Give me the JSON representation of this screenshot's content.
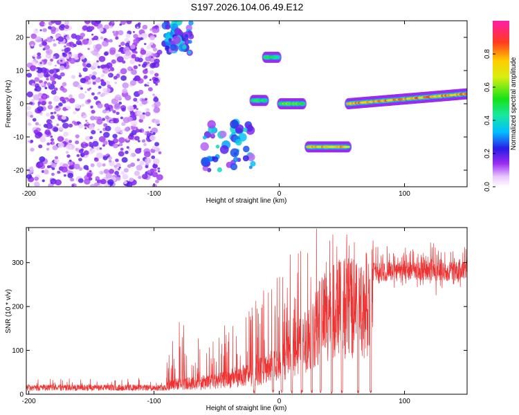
{
  "title": "S197.2026.104.06.49.E12",
  "chart_data": [
    {
      "type": "heatmap",
      "xlabel": "Height of straight line (km)",
      "ylabel": "Frequency (Hz)",
      "xlim": [
        -202,
        150
      ],
      "ylim": [
        -25,
        25
      ],
      "xticks": [
        -200,
        -100,
        0,
        100
      ],
      "xtick_labels": [
        "-200",
        "-100",
        "0",
        "100"
      ],
      "yticks": [
        -20,
        -10,
        0,
        10,
        20
      ],
      "ytick_labels": [
        "-20",
        "-10",
        "0",
        "10",
        "20"
      ],
      "colorbar": {
        "label": "Normalized spectral amplitude",
        "range": [
          0,
          1
        ],
        "ticks": [
          0.0,
          0.2,
          0.4,
          0.6,
          0.8
        ],
        "tick_labels": [
          "0.0",
          "0.2",
          "0.4",
          "0.6",
          "0.8"
        ]
      },
      "features": [
        {
          "x": [
            -200,
            -95
          ],
          "y": [
            -25,
            25
          ],
          "intensity": 0.15,
          "kind": "scatter-noise"
        },
        {
          "x": [
            -92,
            -70
          ],
          "y": [
            15,
            25
          ],
          "intensity": 0.3,
          "kind": "cluster"
        },
        {
          "x": [
            -60,
            -20
          ],
          "y": [
            -20,
            -5
          ],
          "intensity": 0.3,
          "kind": "cluster"
        },
        {
          "x": [
            -21,
            -11
          ],
          "y": [
            1,
            1
          ],
          "intensity": 0.55,
          "kind": "segment"
        },
        {
          "x": [
            -11,
            -1
          ],
          "y": [
            14,
            14
          ],
          "intensity": 0.55,
          "kind": "segment"
        },
        {
          "x": [
            1,
            19
          ],
          "y": [
            0,
            0
          ],
          "intensity": 0.6,
          "kind": "segment"
        },
        {
          "x": [
            23,
            55
          ],
          "y": [
            -13,
            -13
          ],
          "intensity": 0.8,
          "kind": "segment"
        },
        {
          "x": [
            55,
            150
          ],
          "y": [
            0,
            3
          ],
          "intensity": 0.85,
          "kind": "segment"
        }
      ]
    },
    {
      "type": "line",
      "xlabel": "Height of straight line (km)",
      "ylabel": "SNR (10 * v/v)",
      "xlim": [
        -202,
        150
      ],
      "ylim": [
        0,
        380
      ],
      "xticks": [
        -200,
        -100,
        0,
        100
      ],
      "xtick_labels": [
        "-200",
        "-100",
        "0",
        "100"
      ],
      "yticks": [
        0,
        100,
        200,
        300
      ],
      "ytick_labels": [
        "0",
        "100",
        "200",
        "300"
      ],
      "series": [
        {
          "name": "SNR",
          "color": "#ee3333",
          "x": [
            -200,
            -150,
            -100,
            -90,
            -85,
            -60,
            -40,
            -25,
            -20,
            -10,
            0,
            10,
            20,
            30,
            35,
            40,
            50,
            55,
            60,
            65,
            70,
            75,
            100,
            150
          ],
          "baseline": [
            12,
            12,
            12,
            25,
            30,
            35,
            45,
            60,
            60,
            80,
            90,
            120,
            160,
            200,
            240,
            240,
            260,
            260,
            260,
            270,
            270,
            280,
            280,
            280
          ],
          "peak": [
            30,
            35,
            40,
            90,
            175,
            150,
            160,
            195,
            240,
            290,
            280,
            300,
            330,
            360,
            370,
            380,
            360,
            380,
            350,
            330,
            330,
            330,
            330,
            330
          ]
        }
      ],
      "dropouts_x": [
        -20,
        -5,
        2,
        10,
        18,
        26,
        33,
        42,
        50,
        63,
        73
      ]
    }
  ]
}
